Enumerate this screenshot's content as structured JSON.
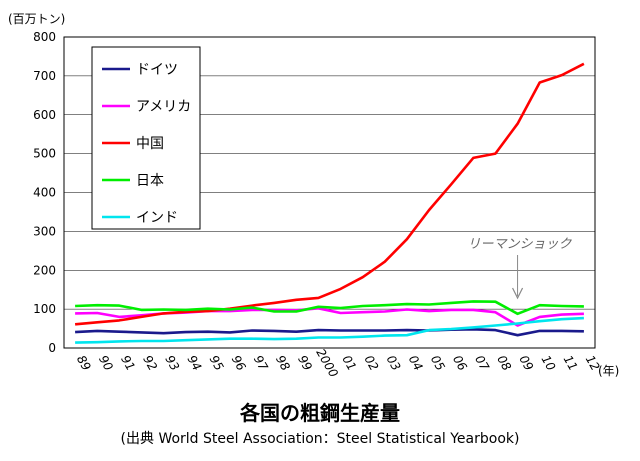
{
  "chart_data": {
    "type": "line",
    "title": "各国の粗鋼生産量",
    "subtitle": "(出典 World Steel Association：Steel Statistical Yearbook)",
    "ylabel": "(百万トン)",
    "xlabel": "(年)",
    "ylim": [
      0,
      800
    ],
    "yticks": [
      0,
      100,
      200,
      300,
      400,
      500,
      600,
      700,
      800
    ],
    "categories": [
      "89",
      "90",
      "91",
      "92",
      "93",
      "94",
      "95",
      "96",
      "97",
      "98",
      "99",
      "2000",
      "01",
      "02",
      "03",
      "04",
      "05",
      "06",
      "07",
      "08",
      "09",
      "10",
      "11",
      "12"
    ],
    "series": [
      {
        "name": "ドイツ",
        "color": "#1a1a8c",
        "values": [
          41,
          44,
          42,
          40,
          38,
          41,
          42,
          40,
          45,
          44,
          42,
          46,
          45,
          45,
          45,
          46,
          45,
          47,
          48,
          46,
          33,
          44,
          44,
          43
        ]
      },
      {
        "name": "アメリカ",
        "color": "#ff00ff",
        "values": [
          89,
          90,
          80,
          84,
          89,
          91,
          95,
          95,
          98,
          98,
          97,
          102,
          90,
          92,
          94,
          99,
          95,
          98,
          98,
          92,
          58,
          80,
          86,
          88
        ]
      },
      {
        "name": "中国",
        "color": "#ff0000",
        "values": [
          61,
          66,
          71,
          80,
          89,
          93,
          95,
          101,
          109,
          116,
          124,
          129,
          152,
          182,
          222,
          280,
          355,
          421,
          489,
          500,
          577,
          683,
          702,
          731
        ]
      },
      {
        "name": "日本",
        "color": "#00ee00",
        "values": [
          108,
          110,
          109,
          98,
          99,
          98,
          101,
          99,
          104,
          94,
          94,
          106,
          103,
          108,
          110,
          113,
          112,
          116,
          120,
          119,
          88,
          110,
          108,
          107
        ]
      },
      {
        "name": "インド",
        "color": "#00e5ee",
        "values": [
          14,
          15,
          17,
          18,
          18,
          20,
          22,
          24,
          24,
          23,
          24,
          27,
          27,
          29,
          32,
          33,
          46,
          49,
          53,
          58,
          63,
          69,
          74,
          77
        ]
      }
    ],
    "legend_position": "top-left",
    "annotation": {
      "text": "リーマンショック",
      "at_category": "09"
    },
    "grid": true
  }
}
